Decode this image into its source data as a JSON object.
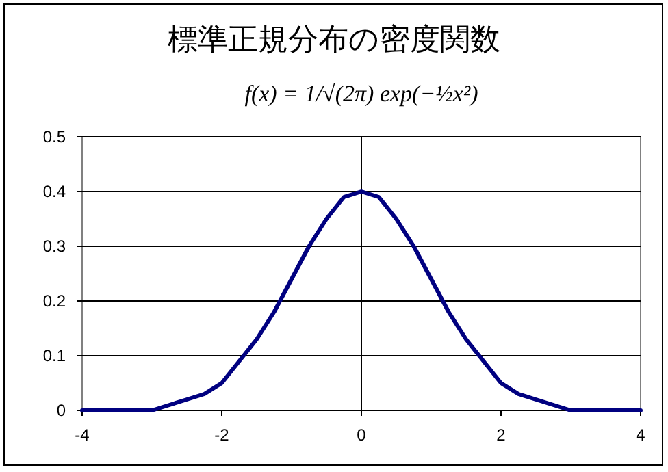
{
  "chart_data": {
    "type": "line",
    "title": "標準正規分布の密度関数",
    "subtitle": "f(x) = 1/√(2π) exp(−½x²)",
    "x": [
      -4,
      -3.75,
      -3.5,
      -3.25,
      -3,
      -2.75,
      -2.5,
      -2.25,
      -2,
      -1.75,
      -1.5,
      -1.25,
      -1,
      -0.75,
      -0.5,
      -0.25,
      0,
      0.25,
      0.5,
      0.75,
      1,
      1.25,
      1.5,
      1.75,
      2,
      2.25,
      2.5,
      2.75,
      3,
      3.25,
      3.5,
      3.75,
      4
    ],
    "series": [
      {
        "color": "#000080",
        "values": [
          0,
          0,
          0,
          0,
          0,
          0.01,
          0.02,
          0.03,
          0.05,
          0.09,
          0.13,
          0.18,
          0.24,
          0.3,
          0.35,
          0.39,
          0.4,
          0.39,
          0.35,
          0.3,
          0.24,
          0.18,
          0.13,
          0.09,
          0.05,
          0.03,
          0.02,
          0.01,
          0,
          0,
          0,
          0,
          0
        ]
      }
    ],
    "xlim": [
      -4,
      4
    ],
    "xticks": [
      -4,
      -2,
      0,
      2,
      4
    ],
    "ylim": [
      0,
      0.5
    ],
    "yticks": [
      0,
      0.1,
      0.2,
      0.3,
      0.4,
      0.5
    ],
    "grid": "y",
    "marker": "none",
    "line_style": "solid",
    "ref_lines": [
      {
        "axis": "x",
        "value": 0,
        "color": "#000000"
      }
    ]
  }
}
